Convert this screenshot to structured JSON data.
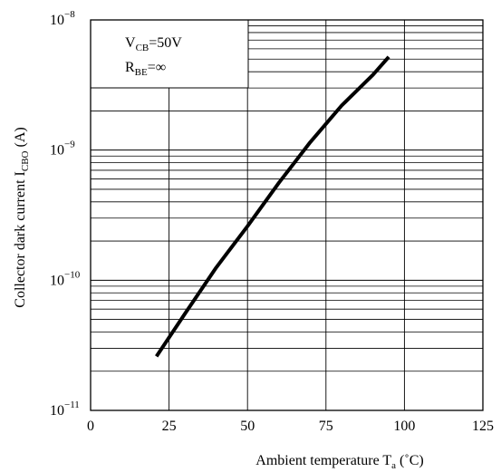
{
  "chart_data": {
    "type": "line",
    "title": "",
    "xlabel": "Ambient temperature T",
    "xlabel_sub": "a",
    "xlabel_unit": " (˚C)",
    "ylabel": "Collector dark current I",
    "ylabel_sub": "CBO",
    "ylabel_unit": " (A)",
    "xlim": [
      0,
      125
    ],
    "ylim": [
      1e-11,
      1e-08
    ],
    "yscale": "log",
    "grid": true,
    "x_ticks": [
      {
        "value": 0,
        "label": "0"
      },
      {
        "value": 25,
        "label": "25"
      },
      {
        "value": 50,
        "label": "50"
      },
      {
        "value": 75,
        "label": "75"
      },
      {
        "value": 100,
        "label": "100"
      },
      {
        "value": 125,
        "label": "125"
      }
    ],
    "y_ticks": [
      {
        "value": 1e-08,
        "base": "10",
        "exp": "−8"
      },
      {
        "value": 1e-09,
        "base": "10",
        "exp": "−9"
      },
      {
        "value": 1e-10,
        "base": "10",
        "exp": "−10"
      },
      {
        "value": 1e-11,
        "base": "10",
        "exp": "−11"
      }
    ],
    "conditions": [
      {
        "main": "V",
        "sub": "CB",
        "rest": "=50V"
      },
      {
        "main": "R",
        "sub": "BE",
        "rest": "=∞"
      }
    ],
    "series": [
      {
        "x": [
          21,
          30,
          40,
          50,
          60,
          70,
          80,
          90,
          95
        ],
        "y": [
          2.6e-11,
          5.5e-11,
          1.25e-10,
          2.6e-10,
          5.6e-10,
          1.15e-09,
          2.2e-09,
          3.8e-09,
          5.2e-09
        ]
      }
    ]
  }
}
